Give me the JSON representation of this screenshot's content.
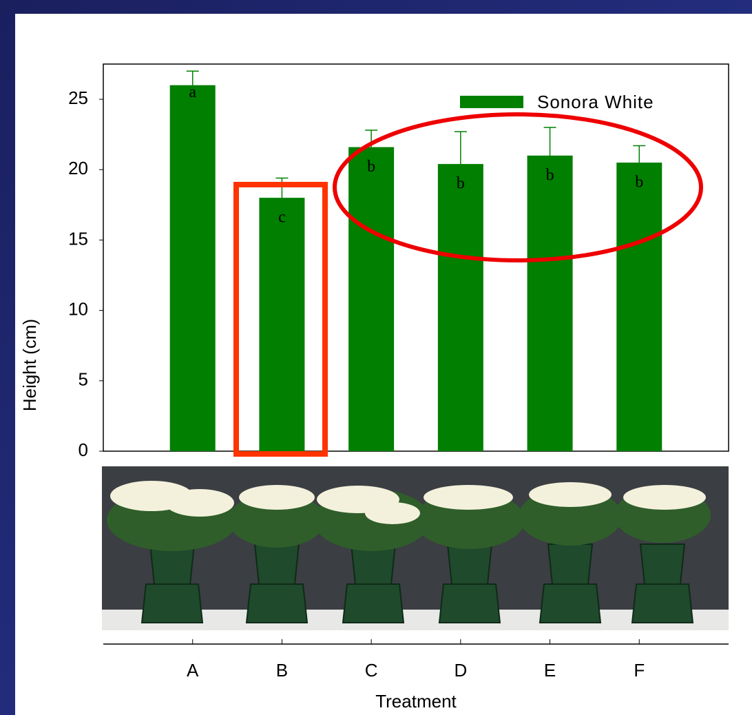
{
  "chart_data": {
    "type": "bar",
    "xlabel": "Treatment",
    "ylabel": "Height (cm)",
    "categories": [
      "A",
      "B",
      "C",
      "D",
      "E",
      "F"
    ],
    "series": [
      {
        "name": "Sonora White",
        "color": "#007f00",
        "values": [
          26,
          18,
          21.6,
          20.4,
          21,
          20.5
        ],
        "errors": [
          1,
          1.4,
          1.2,
          2.3,
          2,
          1.2
        ]
      }
    ],
    "letters": [
      "a",
      "c",
      "b",
      "b",
      "b",
      "b"
    ],
    "ylim": [
      0,
      27.5
    ],
    "yticks": [
      0,
      5,
      10,
      15,
      20,
      25
    ],
    "legend": "upper right"
  }
}
